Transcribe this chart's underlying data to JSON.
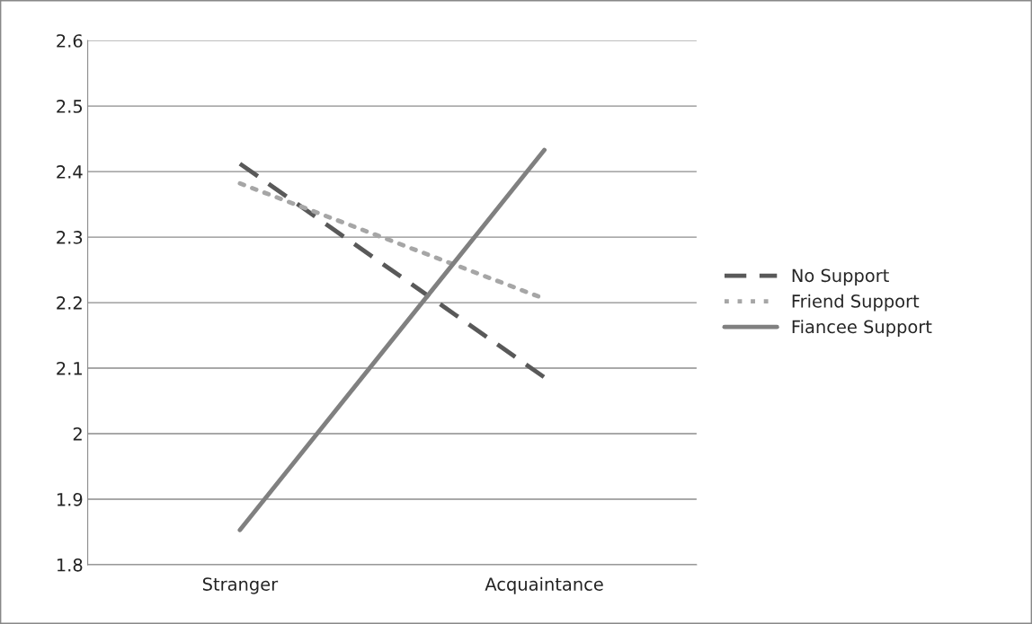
{
  "chart_data": {
    "type": "line",
    "categories": [
      "Stranger",
      "Acquaintance"
    ],
    "series": [
      {
        "name": "No Support",
        "color": "#595959",
        "line_style": "dashed",
        "values": [
          2.412,
          2.086
        ]
      },
      {
        "name": "Friend Support",
        "color": "#a6a6a6",
        "line_style": "dotted",
        "values": [
          2.382,
          2.206
        ]
      },
      {
        "name": "Fiancee Support",
        "color": "#808080",
        "line_style": "solid",
        "values": [
          1.853,
          2.433
        ]
      }
    ],
    "ylim": [
      1.8,
      2.6
    ],
    "yticks": [
      1.8,
      1.9,
      {
        "value": 2.0,
        "label": "2"
      },
      2.1,
      2.2,
      2.3,
      2.4,
      2.5,
      2.6
    ],
    "grid": "y",
    "legend": "right",
    "marker": "none"
  }
}
